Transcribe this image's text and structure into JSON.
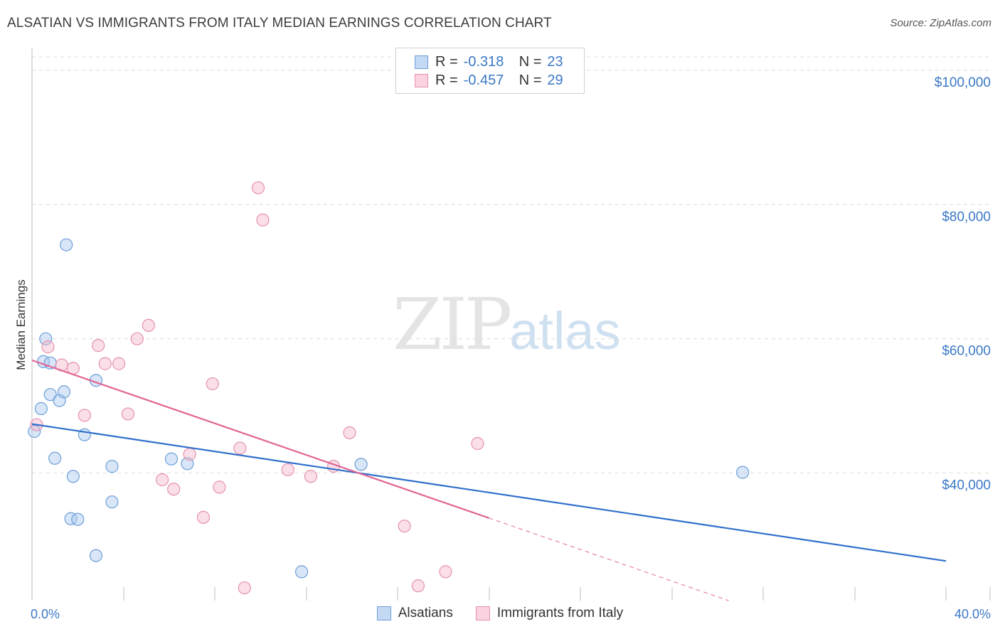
{
  "title": "ALSATIAN VS IMMIGRANTS FROM ITALY MEDIAN EARNINGS CORRELATION CHART",
  "source": "Source: ZipAtlas.com",
  "watermark": {
    "zip": "ZIP",
    "atlas": "atlas"
  },
  "legend": {
    "r_label": "R =",
    "n_label": "N =",
    "series": [
      {
        "r": "-0.318",
        "n": "23"
      },
      {
        "r": "-0.457",
        "n": "29"
      }
    ]
  },
  "colors": {
    "blue_fill": "#a9c8ef",
    "blue_stroke": "#6d9fd8",
    "blue_line": "#2f6fcb",
    "pink_fill": "#f5b9cc",
    "pink_stroke": "#e590ad",
    "pink_line": "#e26694",
    "axis_text": "#3b78c6",
    "grid": "#dcdcdc"
  },
  "chart_data": {
    "type": "scatter",
    "title": "ALSATIAN VS IMMIGRANTS FROM ITALY MEDIAN EARNINGS CORRELATION CHART",
    "xlabel": "",
    "ylabel": "Median Earnings",
    "xlim": [
      0,
      40
    ],
    "ylim": [
      21000,
      102000
    ],
    "x_tick_labels": [
      "0.0%",
      "40.0%"
    ],
    "y_ticks": [
      40000,
      60000,
      80000,
      100000
    ],
    "y_tick_labels": [
      "$40,000",
      "$60,000",
      "$80,000",
      "$100,000"
    ],
    "grid": true,
    "series": [
      {
        "name": "Alsatians",
        "color": "blue",
        "points": [
          [
            0.1,
            46200
          ],
          [
            0.4,
            49600
          ],
          [
            0.6,
            60000
          ],
          [
            0.5,
            56600
          ],
          [
            0.8,
            56400
          ],
          [
            0.8,
            51700
          ],
          [
            1.2,
            50800
          ],
          [
            1.4,
            52100
          ],
          [
            1.5,
            74000
          ],
          [
            1.0,
            42200
          ],
          [
            1.8,
            39500
          ],
          [
            2.3,
            45700
          ],
          [
            1.7,
            33200
          ],
          [
            2.0,
            33100
          ],
          [
            2.8,
            53800
          ],
          [
            3.5,
            41000
          ],
          [
            3.5,
            35700
          ],
          [
            2.8,
            27700
          ],
          [
            6.1,
            42100
          ],
          [
            6.8,
            41400
          ],
          [
            11.8,
            25300
          ],
          [
            14.4,
            41300
          ],
          [
            31.1,
            40100
          ]
        ],
        "trend": {
          "x": [
            0,
            40
          ],
          "y": [
            47300,
            26900
          ]
        }
      },
      {
        "name": "Immigrants from Italy",
        "color": "pink",
        "points": [
          [
            0.2,
            47200
          ],
          [
            0.7,
            58800
          ],
          [
            1.3,
            56100
          ],
          [
            1.8,
            55600
          ],
          [
            2.3,
            48600
          ],
          [
            2.9,
            59000
          ],
          [
            3.2,
            56300
          ],
          [
            3.8,
            56300
          ],
          [
            4.2,
            48800
          ],
          [
            4.6,
            60000
          ],
          [
            5.1,
            62000
          ],
          [
            5.7,
            39000
          ],
          [
            6.2,
            37600
          ],
          [
            6.9,
            42800
          ],
          [
            7.5,
            33400
          ],
          [
            7.9,
            53300
          ],
          [
            8.2,
            37900
          ],
          [
            9.1,
            43700
          ],
          [
            9.3,
            22900
          ],
          [
            9.9,
            82500
          ],
          [
            10.1,
            77700
          ],
          [
            11.2,
            40500
          ],
          [
            12.2,
            39500
          ],
          [
            13.2,
            41000
          ],
          [
            13.9,
            46000
          ],
          [
            16.3,
            32100
          ],
          [
            16.9,
            23200
          ],
          [
            18.1,
            25300
          ],
          [
            19.5,
            44400
          ]
        ],
        "trend": {
          "x": [
            0,
            20
          ],
          "y": [
            56800,
            33300
          ]
        },
        "trend_extension": {
          "x": [
            20,
            31
          ],
          "y": [
            33300,
            20400
          ]
        }
      }
    ]
  },
  "bottom_legend": [
    "Alsatians",
    "Immigrants from Italy"
  ]
}
